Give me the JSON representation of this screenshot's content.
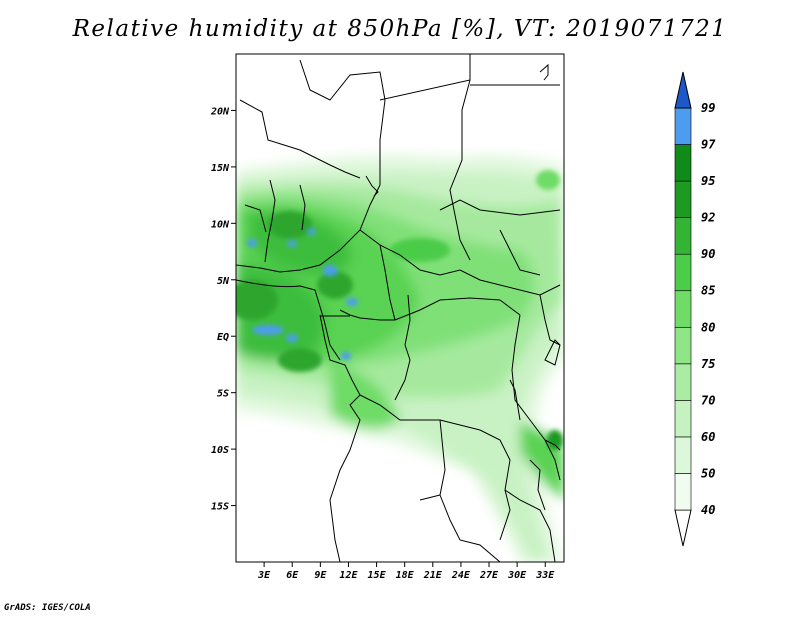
{
  "title": "Relative humidity at 850hPa [%], VT: 2019071721",
  "footer": "GrADS: IGES/COLA",
  "map": {
    "lon_range": [
      0,
      35
    ],
    "lat_range": [
      -20,
      25
    ],
    "lat_ticks": [
      {
        "value": 20,
        "label": "20N"
      },
      {
        "value": 15,
        "label": "15N"
      },
      {
        "value": 10,
        "label": "10N"
      },
      {
        "value": 5,
        "label": "5N"
      },
      {
        "value": 0,
        "label": "EQ"
      },
      {
        "value": -5,
        "label": "5S"
      },
      {
        "value": -10,
        "label": "10S"
      },
      {
        "value": -15,
        "label": "15S"
      }
    ],
    "lon_ticks": [
      {
        "value": 3,
        "label": "3E"
      },
      {
        "value": 6,
        "label": "6E"
      },
      {
        "value": 9,
        "label": "9E"
      },
      {
        "value": 12,
        "label": "12E"
      },
      {
        "value": 15,
        "label": "15E"
      },
      {
        "value": 18,
        "label": "18E"
      },
      {
        "value": 21,
        "label": "21E"
      },
      {
        "value": 24,
        "label": "24E"
      },
      {
        "value": 27,
        "label": "27E"
      },
      {
        "value": 30,
        "label": "30E"
      },
      {
        "value": 33,
        "label": "33E"
      }
    ]
  },
  "colorbar": {
    "levels": [
      {
        "label": "40",
        "color": "#f0fcef"
      },
      {
        "label": "50",
        "color": "#dcf7d9"
      },
      {
        "label": "60",
        "color": "#c6f2c1"
      },
      {
        "label": "70",
        "color": "#aaeca3"
      },
      {
        "label": "75",
        "color": "#8ee686"
      },
      {
        "label": "80",
        "color": "#6edc66"
      },
      {
        "label": "85",
        "color": "#4ccc48"
      },
      {
        "label": "90",
        "color": "#34b334"
      },
      {
        "label": "92",
        "color": "#1e9a22"
      },
      {
        "label": "95",
        "color": "#108a18"
      },
      {
        "label": "97",
        "color": "#4d9cf0"
      },
      {
        "label": "99",
        "color": "#2a6fe0"
      }
    ],
    "top_arrow_color": "#1c58c8"
  }
}
